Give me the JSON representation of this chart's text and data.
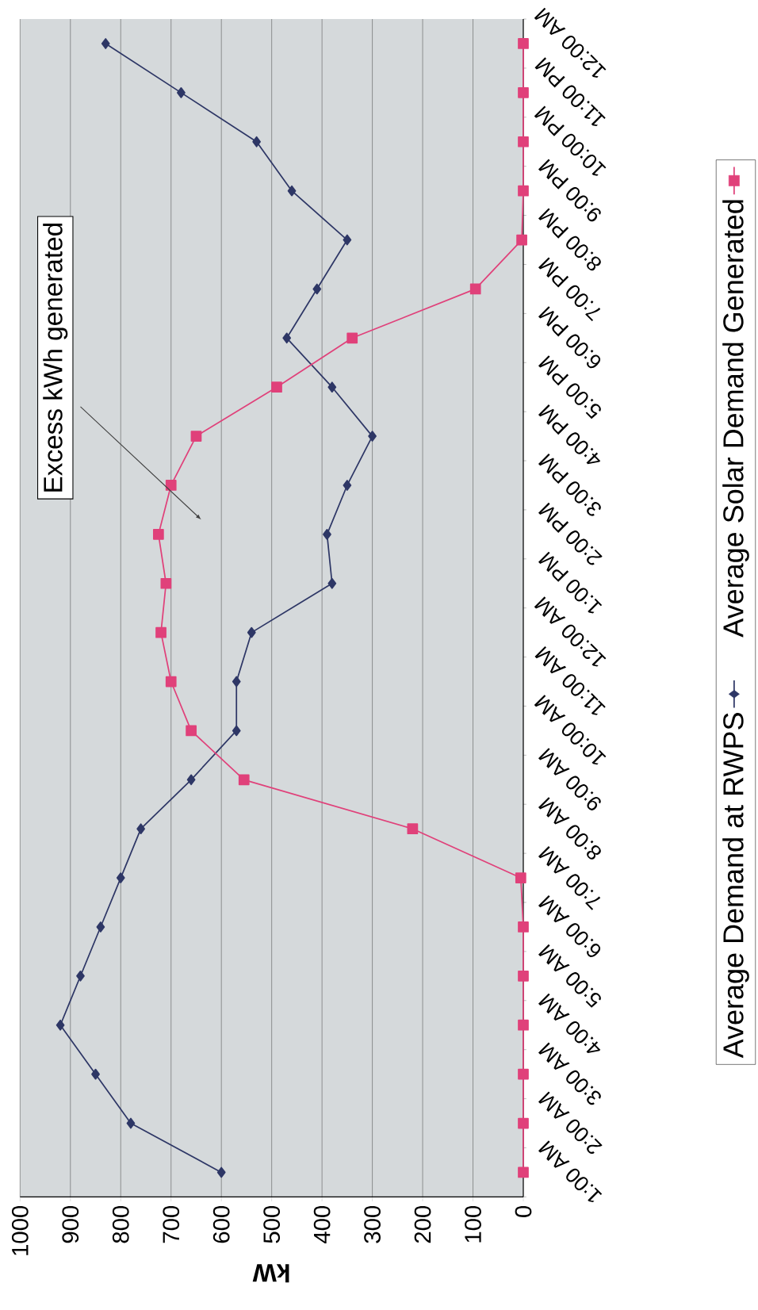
{
  "chart_data": {
    "type": "line",
    "orientation": "horizontal",
    "xlabel": "kW",
    "annotations": [
      "Excess kWh generated"
    ],
    "categories": [
      "12:00 AM",
      "11:00 PM",
      "10:00 PM",
      "9:00 PM",
      "8:00 PM",
      "7:00 PM",
      "6:00 PM",
      "5:00 PM",
      "4:00 PM",
      "3:00 PM",
      "2:00 PM",
      "1:00 PM",
      "12:00 AM",
      "11:00 AM",
      "10:00 AM",
      "9:00 AM",
      "8:00 AM",
      "7:00 AM",
      "6:00 AM",
      "5:00 AM",
      "4:00 AM",
      "3:00 AM",
      "2:00 AM",
      "1:00 AM"
    ],
    "xlim": [
      1000,
      0
    ],
    "xticks": [
      1000,
      900,
      800,
      700,
      600,
      500,
      400,
      300,
      200,
      100,
      0
    ],
    "grid": "x",
    "legend": "right",
    "series": [
      {
        "name": "Average Demand at RWPS",
        "color": "#2e3766",
        "marker": "diamond",
        "values": [
          830,
          680,
          530,
          460,
          350,
          410,
          470,
          380,
          300,
          350,
          390,
          380,
          540,
          570,
          570,
          660,
          760,
          800,
          840,
          880,
          920,
          850,
          780,
          600
        ]
      },
      {
        "name": "Average Solar Demand Generated",
        "color": "#e0417a",
        "marker": "square",
        "values": [
          0,
          0,
          0,
          0,
          3,
          95,
          340,
          490,
          650,
          700,
          725,
          710,
          720,
          700,
          660,
          555,
          220,
          5,
          0,
          0,
          0,
          0,
          0,
          0
        ]
      }
    ]
  }
}
